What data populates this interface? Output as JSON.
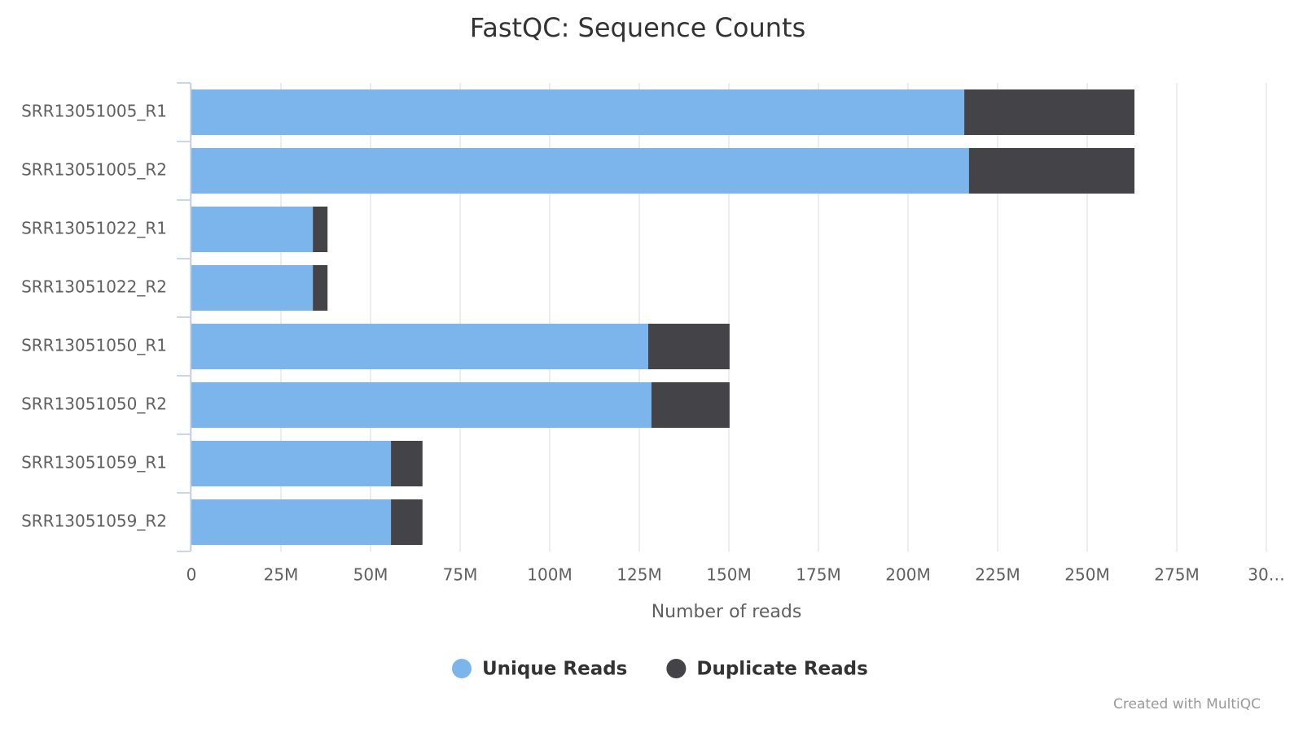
{
  "chart_data": {
    "type": "stacked-bar",
    "orientation": "horizontal",
    "title": "FastQC: Sequence Counts",
    "x_label": "Number of reads",
    "credit": "Created with MultiQC",
    "categories": [
      "SRR13051005_R1",
      "SRR13051005_R2",
      "SRR13051022_R1",
      "SRR13051022_R2",
      "SRR13051050_R1",
      "SRR13051050_R2",
      "SRR13051059_R1",
      "SRR13051059_R2"
    ],
    "series": [
      {
        "name": "Unique Reads",
        "color": "#7cb5ec",
        "values": [
          215700000,
          217000000,
          33900000,
          33900000,
          127500000,
          128400000,
          55700000,
          55700000
        ]
      },
      {
        "name": "Duplicate Reads",
        "color": "#434348",
        "values": [
          47500000,
          46200000,
          4100000,
          4100000,
          22700000,
          21800000,
          8800000,
          8800000
        ]
      }
    ],
    "xlim": [
      0,
      300000000
    ],
    "xticks": [
      0,
      {
        "value": 25000000,
        "label": "25M"
      },
      {
        "value": 50000000,
        "label": "50M"
      },
      {
        "value": 75000000,
        "label": "75M"
      },
      {
        "value": 100000000,
        "label": "100M"
      },
      {
        "value": 125000000,
        "label": "125M"
      },
      {
        "value": 150000000,
        "label": "150M"
      },
      {
        "value": 175000000,
        "label": "175M"
      },
      {
        "value": 200000000,
        "label": "200M"
      },
      {
        "value": 225000000,
        "label": "225M"
      },
      {
        "value": 250000000,
        "label": "250M"
      },
      {
        "value": 275000000,
        "label": "275M"
      },
      {
        "value": 300000000,
        "label": "30…"
      }
    ],
    "grid": true
  }
}
